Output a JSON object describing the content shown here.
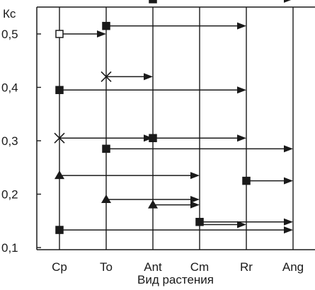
{
  "chart_data": {
    "type": "scatter",
    "title": "",
    "xlabel": "Вид растения",
    "ylabel": "Кс",
    "categories": [
      "Cp",
      "To",
      "Ant",
      "Cm",
      "Rr",
      "Ang"
    ],
    "yticks": [
      "0,1",
      "0,2",
      "0,3",
      "0,4",
      "0,5"
    ],
    "ylim": [
      0.1,
      0.62
    ],
    "grid": "vertical lines at each category",
    "legend": "none",
    "colors": {
      "ink": "#1a1a1a",
      "background": "#ffffff"
    },
    "series": [
      {
        "start": "Cp",
        "value": 0.5,
        "end": "To",
        "marker": "open-square"
      },
      {
        "start": "To",
        "value": 0.515,
        "end": "Rr",
        "marker": "filled-square"
      },
      {
        "start": "Ant",
        "value": 0.565,
        "end": "Ang",
        "marker": "filled-square"
      },
      {
        "start": "To",
        "value": 0.42,
        "end": "Ant",
        "marker": "cross"
      },
      {
        "start": "Cp",
        "value": 0.395,
        "end": "Rr",
        "marker": "filled-square"
      },
      {
        "start": "Cp",
        "value": 0.305,
        "end": "Ant",
        "marker": "cross"
      },
      {
        "start": "Ant",
        "value": 0.305,
        "end": "Rr",
        "marker": "filled-square"
      },
      {
        "start": "To",
        "value": 0.285,
        "end": "Ang",
        "marker": "filled-square"
      },
      {
        "start": "Cp",
        "value": 0.235,
        "end": "Cm",
        "marker": "filled-triangle"
      },
      {
        "start": "Rr",
        "value": 0.225,
        "end": "Ang",
        "marker": "filled-square"
      },
      {
        "start": "To",
        "value": 0.19,
        "end": "Cm",
        "marker": "filled-triangle"
      },
      {
        "start": "Ant",
        "value": 0.18,
        "end": "Cm",
        "marker": "filled-triangle"
      },
      {
        "start": "Cm",
        "value": 0.148,
        "end": "Ang",
        "marker": "filled-square"
      },
      {
        "start": "Cm",
        "value": 0.143,
        "end": "Rr",
        "marker": "none"
      },
      {
        "start": "Cp",
        "value": 0.133,
        "end": "Ang",
        "marker": "filled-square"
      }
    ]
  }
}
